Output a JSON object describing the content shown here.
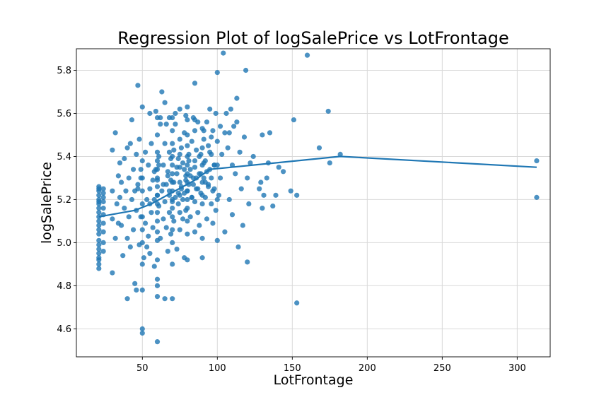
{
  "chart_data": {
    "type": "scatter",
    "title": "Regression Plot of logSalePrice vs LotFrontage",
    "xlabel": "LotFrontage",
    "ylabel": "logSalePrice",
    "xlim": [
      6,
      322
    ],
    "ylim": [
      4.47,
      5.9
    ],
    "x_ticks": [
      50,
      100,
      150,
      200,
      250,
      300
    ],
    "y_ticks": [
      4.6,
      4.8,
      5.0,
      5.2,
      5.4,
      5.6,
      5.8
    ],
    "x_tick_labels": [
      "50",
      "100",
      "150",
      "200",
      "250",
      "300"
    ],
    "y_tick_labels": [
      "4.6",
      "4.8",
      "5.0",
      "5.2",
      "5.4",
      "5.6",
      "5.8"
    ],
    "grid": true,
    "colors": {
      "points": "#1f77b4",
      "line": "#1f77b4"
    },
    "points": {
      "x": [
        21,
        21,
        21,
        21,
        21,
        21,
        21,
        21,
        21,
        21,
        21,
        21,
        21,
        21,
        21,
        21,
        21,
        21,
        21,
        21,
        21,
        21,
        24,
        24,
        24,
        24,
        24,
        24,
        24,
        24,
        24,
        24,
        30,
        30,
        30,
        30,
        32,
        32,
        33,
        34,
        34,
        35,
        35,
        36,
        36,
        37,
        38,
        38,
        39,
        40,
        40,
        40,
        41,
        41,
        42,
        42,
        43,
        43,
        44,
        44,
        45,
        45,
        46,
        46,
        47,
        47,
        48,
        48,
        49,
        49,
        50,
        50,
        50,
        50,
        50,
        50,
        50,
        50,
        50,
        50,
        50,
        50,
        51,
        52,
        52,
        53,
        53,
        54,
        54,
        55,
        55,
        55,
        56,
        56,
        57,
        57,
        58,
        58,
        59,
        59,
        60,
        60,
        60,
        60,
        60,
        60,
        60,
        60,
        60,
        60,
        60,
        60,
        60,
        60,
        60,
        60,
        60,
        60,
        61,
        61,
        62,
        62,
        63,
        63,
        64,
        64,
        65,
        65,
        65,
        65,
        66,
        66,
        67,
        67,
        68,
        68,
        68,
        68,
        69,
        69,
        70,
        70,
        70,
        70,
        70,
        70,
        70,
        70,
        70,
        70,
        70,
        70,
        70,
        70,
        70,
        71,
        71,
        72,
        72,
        73,
        73,
        74,
        74,
        75,
        75,
        75,
        75,
        75,
        75,
        75,
        76,
        76,
        77,
        77,
        78,
        78,
        78,
        79,
        79,
        80,
        80,
        80,
        80,
        80,
        80,
        80,
        80,
        80,
        80,
        80,
        80,
        80,
        80,
        81,
        81,
        82,
        82,
        83,
        83,
        84,
        84,
        85,
        85,
        85,
        85,
        85,
        86,
        86,
        87,
        87,
        88,
        88,
        89,
        89,
        90,
        90,
        90,
        90,
        90,
        90,
        90,
        91,
        91,
        92,
        92,
        93,
        93,
        94,
        94,
        95,
        95,
        96,
        96,
        97,
        97,
        98,
        98,
        99,
        99,
        100,
        100,
        100,
        100,
        100,
        101,
        102,
        103,
        104,
        105,
        105,
        106,
        107,
        108,
        109,
        110,
        110,
        111,
        112,
        113,
        114,
        115,
        116,
        117,
        118,
        119,
        120,
        120,
        121,
        122,
        124,
        128,
        129,
        130,
        130,
        131,
        133,
        134,
        135,
        137,
        139,
        141,
        144,
        149,
        151,
        153,
        153,
        160,
        168,
        174,
        175,
        182,
        313,
        313,
        46,
        47,
        49,
        55,
        58,
        60,
        60,
        61,
        64,
        67,
        68,
        69,
        70,
        71,
        73,
        74,
        75,
        76,
        77,
        78,
        79,
        80,
        81,
        82,
        83,
        84,
        85,
        86,
        87,
        88,
        89,
        90,
        91,
        92,
        93,
        94,
        95,
        96,
        97,
        98,
        62,
        66,
        72,
        79,
        85,
        91,
        96,
        102,
        108,
        113
      ],
      "y": [
        4.88,
        4.9,
        4.92,
        4.93,
        4.95,
        4.97,
        4.99,
        5.01,
        5.04,
        5.06,
        5.08,
        5.1,
        5.12,
        5.14,
        5.16,
        5.18,
        5.19,
        5.2,
        5.22,
        5.24,
        5.25,
        5.26,
        4.96,
        5.0,
        5.05,
        5.09,
        5.13,
        5.16,
        5.19,
        5.21,
        5.23,
        5.25,
        4.86,
        5.11,
        5.24,
        5.43,
        5.02,
        5.51,
        5.18,
        5.09,
        5.31,
        5.21,
        5.37,
        5.08,
        5.28,
        4.94,
        5.16,
        5.39,
        5.24,
        4.74,
        5.02,
        5.44,
        5.3,
        5.12,
        4.98,
        5.46,
        5.2,
        5.57,
        5.06,
        5.34,
        4.81,
        5.24,
        5.15,
        5.41,
        5.73,
        5.27,
        4.99,
        5.48,
        5.12,
        5.34,
        4.58,
        4.6,
        4.78,
        4.9,
        5.0,
        5.06,
        5.12,
        5.18,
        5.24,
        5.3,
        5.38,
        5.63,
        4.93,
        5.09,
        5.42,
        5.2,
        4.98,
        5.36,
        5.03,
        5.25,
        4.95,
        5.6,
        5.14,
        5.46,
        5.29,
        5.07,
        5.2,
        4.89,
        5.34,
        5.61,
        4.54,
        4.8,
        4.83,
        4.92,
        5.01,
        5.05,
        5.1,
        5.14,
        5.18,
        5.22,
        5.26,
        5.3,
        5.34,
        5.38,
        5.42,
        5.5,
        5.58,
        4.75,
        5.17,
        5.4,
        5.02,
        5.55,
        5.24,
        5.7,
        5.11,
        5.36,
        4.74,
        5.19,
        5.46,
        5.65,
        5.27,
        5.07,
        4.96,
        5.33,
        5.14,
        5.42,
        5.22,
        5.58,
        5.29,
        5.04,
        4.74,
        4.9,
        5.0,
        5.06,
        5.12,
        5.16,
        5.2,
        5.24,
        5.28,
        5.32,
        5.36,
        5.4,
        5.46,
        5.52,
        5.58,
        5.1,
        5.43,
        5.21,
        5.55,
        4.97,
        5.32,
        5.18,
        5.39,
        5.06,
        5.14,
        5.22,
        5.28,
        5.35,
        5.48,
        5.62,
        5.25,
        5.44,
        5.11,
        5.37,
        4.93,
        5.23,
        5.51,
        5.31,
        5.15,
        4.92,
        5.04,
        5.1,
        5.16,
        5.2,
        5.24,
        5.28,
        5.32,
        5.36,
        5.4,
        5.45,
        5.5,
        5.57,
        5.63,
        5.27,
        5.41,
        5.12,
        5.34,
        5.21,
        5.47,
        5.3,
        5.58,
        5.05,
        5.19,
        5.38,
        5.52,
        5.74,
        5.25,
        5.43,
        5.14,
        5.56,
        5.32,
        5.08,
        5.41,
        5.23,
        4.93,
        5.02,
        5.18,
        5.28,
        5.36,
        5.44,
        5.53,
        5.3,
        5.48,
        5.21,
        5.38,
        5.11,
        5.56,
        5.27,
        5.45,
        5.34,
        5.62,
        5.18,
        5.41,
        5.09,
        5.52,
        5.25,
        5.36,
        5.6,
        5.15,
        5.01,
        5.2,
        5.36,
        5.47,
        5.79,
        5.22,
        5.3,
        5.41,
        5.88,
        5.05,
        5.51,
        5.6,
        5.44,
        5.2,
        5.62,
        5.36,
        5.13,
        5.54,
        5.32,
        5.67,
        4.98,
        5.42,
        5.25,
        5.08,
        5.49,
        5.8,
        5.3,
        4.91,
        5.18,
        5.37,
        5.4,
        5.25,
        5.28,
        5.16,
        5.5,
        5.22,
        5.3,
        5.37,
        5.51,
        5.17,
        5.22,
        5.35,
        5.33,
        5.24,
        5.57,
        5.22,
        4.72,
        5.87,
        5.44,
        5.61,
        5.37,
        5.41,
        5.38,
        5.21,
        4.78,
        5.25,
        5.3,
        5.18,
        5.33,
        5.29,
        5.22,
        5.36,
        5.27,
        5.31,
        5.24,
        5.39,
        5.19,
        5.28,
        5.35,
        5.23,
        5.41,
        5.26,
        5.2,
        5.34,
        5.29,
        5.24,
        5.38,
        5.31,
        5.21,
        5.27,
        5.35,
        5.3,
        5.25,
        5.4,
        5.32,
        5.22,
        5.37,
        5.28,
        5.33,
        5.26,
        5.42,
        5.3,
        5.24,
        5.36,
        5.58,
        5.55,
        5.6,
        5.59,
        5.57,
        5.52,
        5.49,
        5.54,
        5.51,
        5.56
      ]
    },
    "regression_line": {
      "x": [
        21,
        45,
        56,
        85,
        95,
        182,
        313
      ],
      "y": [
        5.12,
        5.15,
        5.18,
        5.29,
        5.34,
        5.4,
        5.35
      ]
    }
  }
}
